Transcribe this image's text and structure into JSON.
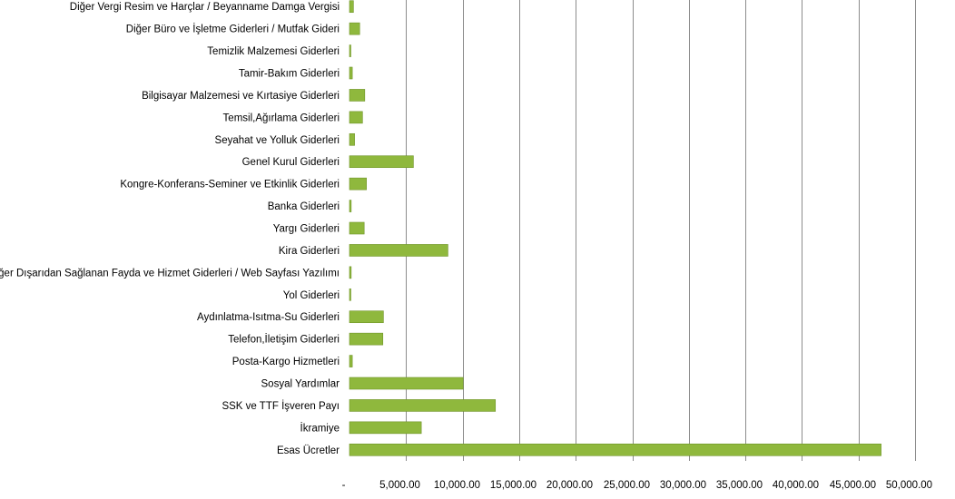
{
  "chart_data": {
    "type": "bar",
    "orientation": "horizontal",
    "categories": [
      "Diğer Vergi Resim ve Harçlar / Beyanname Damga Vergisi",
      "Diğer Büro ve İşletme Giderleri / Mutfak Gideri",
      "Temizlik Malzemesi Giderleri",
      "Tamir-Bakım Giderleri",
      "Bilgisayar Malzemesi ve Kırtasiye Giderleri",
      "Temsil,Ağırlama Giderleri",
      "Seyahat ve Yolluk Giderleri",
      "Genel Kurul Giderleri",
      "Kongre-Konferans-Seminer ve Etkinlik Giderleri",
      "Banka Giderleri",
      "Yargı Giderleri",
      "Kira Giderleri",
      "Diğer Dışarıdan Sağlanan Fayda ve Hizmet Giderleri / Web Sayfası Yazılımı",
      "Yol Giderleri",
      "Aydınlatma-Isıtma-Su Giderleri",
      "Telefon,İletişim Giderleri",
      "Posta-Kargo Hizmetleri",
      "Sosyal Yardımlar",
      "SSK ve TTF İşveren Payı",
      "İkramiye",
      "Esas Ücretler"
    ],
    "values": [
      350,
      900,
      100,
      250,
      1350,
      1150,
      450,
      5650,
      1500,
      150,
      1300,
      8700,
      150,
      100,
      3000,
      2950,
      250,
      10050,
      12900,
      6350,
      47000
    ],
    "xlim": [
      0,
      50000
    ],
    "xticks": [
      0,
      5000,
      10000,
      15000,
      20000,
      25000,
      30000,
      35000,
      40000,
      45000,
      50000
    ],
    "xtick_labels": [
      "-",
      "5,000.00",
      "10,000.00",
      "15,000.00",
      "20,000.00",
      "25,000.00",
      "30,000.00",
      "35,000.00",
      "40,000.00",
      "45,000.00",
      "50,000.00"
    ],
    "title": "",
    "xlabel": "",
    "ylabel": "",
    "grid": "vertical",
    "legend": "none",
    "bar_color": "#8fb83d"
  }
}
